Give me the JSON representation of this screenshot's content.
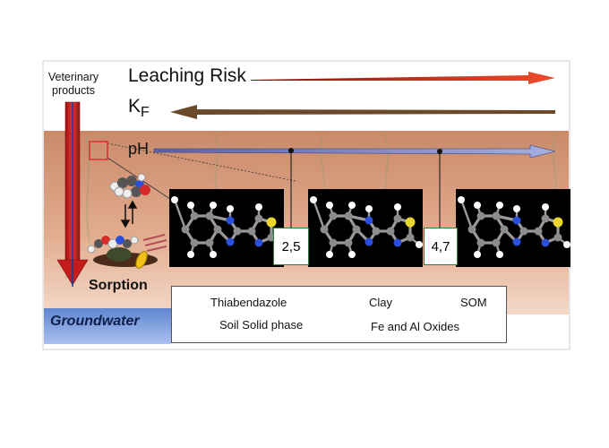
{
  "figure": {
    "source_label": "Veterinary products",
    "source_lines": [
      "Veterinary",
      "products"
    ],
    "leaching_risk": "Leaching Risk",
    "kf": {
      "main": "K",
      "sub": "F"
    },
    "ph": "pH",
    "sorption": "Sorption",
    "groundwater": "Groundwater",
    "pka_values": [
      "2,5",
      "4,7"
    ],
    "legend": {
      "thiabendazole": "Thiabendazole",
      "clay": "Clay",
      "som": "SOM",
      "soil_solid_phase": "Soil Solid phase",
      "fe_al_oxides": "Fe and Al Oxides"
    },
    "colors": {
      "leaching_arrow": "#e53a1e",
      "kf_arrow": "#6b4a2b",
      "ph_arrow": "#8a94c8",
      "soil": "#d9997a",
      "groundwater": "#6f93d6",
      "vertical_arrow": "#d61f1f",
      "nitrogen": "#2b4fd8",
      "sulfur": "#e8d62a"
    }
  }
}
